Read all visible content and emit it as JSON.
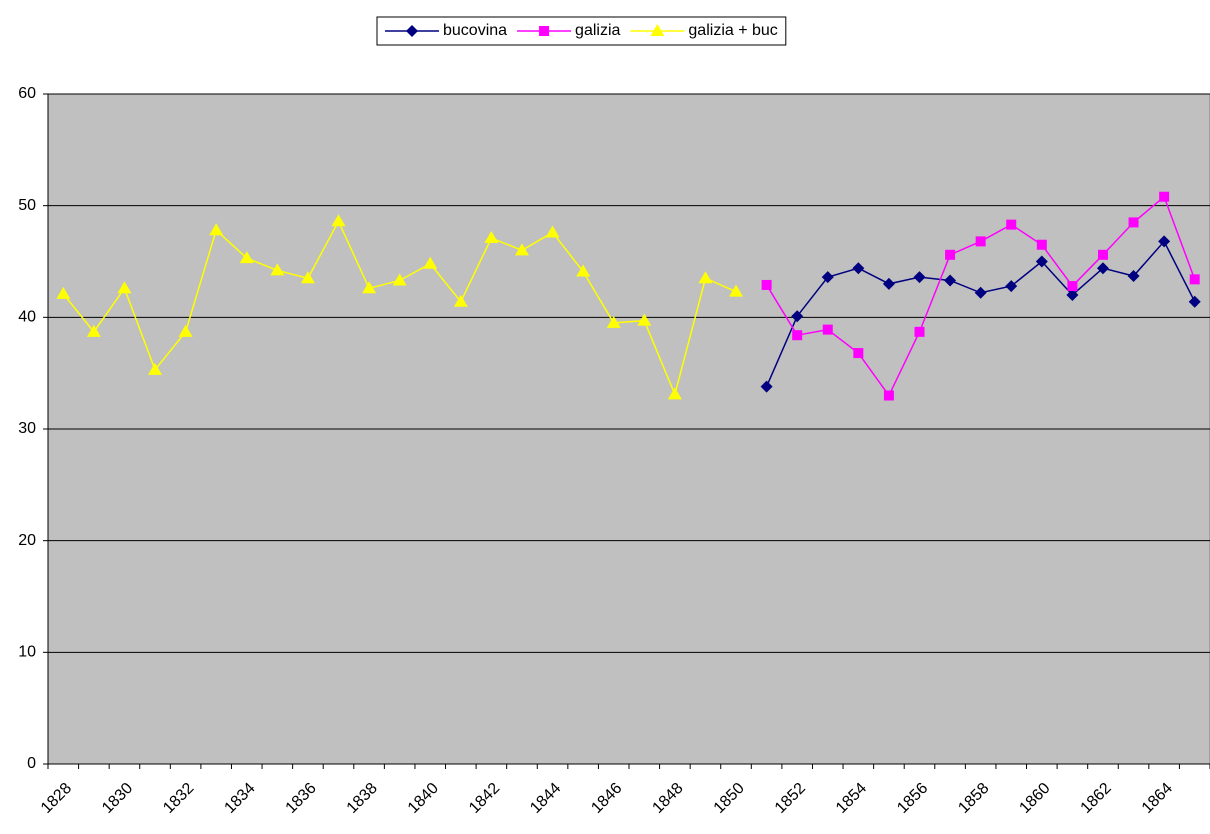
{
  "chart_data": {
    "type": "line",
    "categories": [
      "1828",
      null,
      "1830",
      null,
      "1832",
      null,
      "1834",
      null,
      "1836",
      null,
      "1838",
      null,
      "1840",
      null,
      "1842",
      null,
      "1844",
      null,
      "1846",
      null,
      "1848",
      null,
      "1850",
      null,
      "1852",
      null,
      "1854",
      null,
      "1856",
      null,
      "1858",
      null,
      "1860",
      null,
      "1862",
      null,
      "1864",
      null
    ],
    "series": [
      {
        "name": "bucovina",
        "color": "#000080",
        "marker": "diamond",
        "values": [
          null,
          null,
          null,
          null,
          null,
          null,
          null,
          null,
          null,
          null,
          null,
          null,
          null,
          null,
          null,
          null,
          null,
          null,
          null,
          null,
          null,
          null,
          null,
          33.8,
          40.1,
          43.6,
          44.4,
          43.0,
          43.6,
          43.3,
          42.2,
          42.8,
          45.0,
          42.0,
          44.4,
          43.7,
          46.8,
          41.4
        ]
      },
      {
        "name": "galizia",
        "color": "#ff00ff",
        "marker": "square",
        "values": [
          null,
          null,
          null,
          null,
          null,
          null,
          null,
          null,
          null,
          null,
          null,
          null,
          null,
          null,
          null,
          null,
          null,
          null,
          null,
          null,
          null,
          null,
          null,
          42.9,
          38.4,
          38.9,
          36.8,
          33.0,
          38.7,
          45.6,
          46.8,
          48.3,
          46.5,
          42.8,
          45.6,
          48.5,
          50.8,
          43.4
        ]
      },
      {
        "name": "galizia + buc",
        "color": "#ffff00",
        "marker": "triangle",
        "values": [
          42.1,
          38.7,
          42.6,
          35.3,
          38.7,
          47.8,
          45.3,
          44.2,
          43.5,
          48.6,
          42.6,
          43.3,
          44.8,
          41.4,
          47.1,
          46.0,
          47.6,
          44.1,
          39.5,
          39.7,
          33.1,
          43.5,
          42.3,
          null,
          null,
          null,
          null,
          null,
          null,
          null,
          null,
          null,
          null,
          null,
          null,
          null,
          null,
          null
        ]
      }
    ],
    "ylim": [
      0,
      60
    ],
    "yticks": [
      0,
      10,
      20,
      30,
      40,
      50,
      60
    ],
    "grid": true,
    "plot_background": "#c0c0c0",
    "legend": "top"
  }
}
